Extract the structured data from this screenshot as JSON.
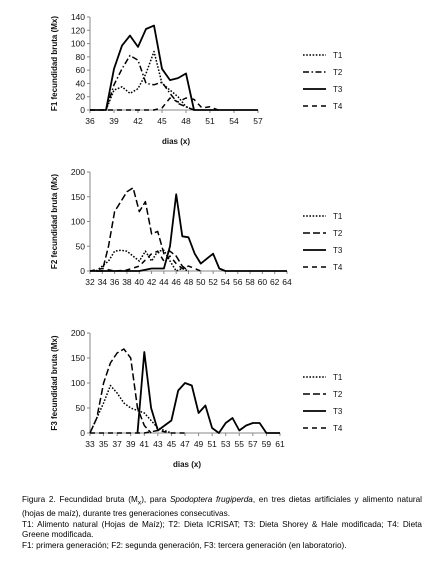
{
  "chart_data": [
    {
      "type": "line",
      "panel": "F1",
      "ylabel": "F1 fecundidad bruta (Mx)",
      "xlabel": "dias (x)",
      "ylim": [
        0,
        140
      ],
      "yticks": [
        0,
        20,
        40,
        60,
        80,
        100,
        120,
        140
      ],
      "xlim": [
        36,
        57
      ],
      "xticks": [
        36,
        39,
        42,
        45,
        48,
        51,
        54,
        57
      ],
      "grid": false,
      "legend_position": "right",
      "series": [
        {
          "name": "T1",
          "style": "dotted",
          "x": [
            38,
            39,
            40,
            41,
            42,
            43,
            44,
            45,
            46,
            47,
            48,
            49
          ],
          "y": [
            0,
            30,
            35,
            25,
            32,
            55,
            88,
            40,
            30,
            20,
            5,
            0
          ]
        },
        {
          "name": "T2",
          "style": "dashdot",
          "x": [
            38,
            39,
            40,
            41,
            42,
            43,
            44,
            45,
            46,
            47,
            48,
            49
          ],
          "y": [
            0,
            38,
            62,
            82,
            75,
            40,
            38,
            42,
            25,
            10,
            5,
            0
          ]
        },
        {
          "name": "T3",
          "style": "solid",
          "x": [
            36,
            37,
            38,
            39,
            40,
            41,
            42,
            43,
            44,
            45,
            46,
            47,
            48,
            49,
            50,
            51,
            52,
            53,
            54,
            55,
            56,
            57
          ],
          "y": [
            0,
            0,
            0,
            62,
            97,
            112,
            95,
            122,
            127,
            62,
            45,
            48,
            55,
            0,
            0,
            0,
            0,
            0,
            0,
            0,
            0,
            0
          ]
        },
        {
          "name": "T4",
          "style": "dashed",
          "x": [
            36,
            38,
            40,
            42,
            44,
            45,
            46,
            47,
            48,
            49,
            50,
            51,
            52
          ],
          "y": [
            0,
            0,
            0,
            0,
            0,
            3,
            18,
            12,
            18,
            16,
            3,
            5,
            0
          ]
        }
      ]
    },
    {
      "type": "line",
      "panel": "F2",
      "ylabel": "F2 fecundidad bruta (Mx)",
      "xlabel": "",
      "ylim": [
        0,
        200
      ],
      "yticks": [
        0,
        50,
        100,
        150,
        200
      ],
      "xlim": [
        32,
        64
      ],
      "xticks": [
        32,
        34,
        36,
        38,
        40,
        42,
        44,
        46,
        48,
        50,
        52,
        54,
        56,
        58,
        60,
        62,
        64
      ],
      "grid": false,
      "legend_position": "right",
      "series": [
        {
          "name": "T1",
          "style": "dotted",
          "x": [
            33,
            34,
            35,
            36,
            37,
            38,
            39,
            40,
            41,
            42,
            43,
            44,
            45,
            46,
            47,
            48
          ],
          "y": [
            0,
            10,
            20,
            40,
            42,
            40,
            30,
            20,
            40,
            20,
            40,
            42,
            20,
            0,
            5,
            0
          ]
        },
        {
          "name": "T2",
          "style": "dash",
          "x": [
            33,
            34,
            35,
            36,
            37,
            38,
            39,
            40,
            41,
            42,
            43,
            44,
            45,
            46,
            47,
            48
          ],
          "y": [
            0,
            0,
            50,
            120,
            140,
            160,
            168,
            120,
            140,
            75,
            80,
            35,
            40,
            30,
            10,
            0
          ]
        },
        {
          "name": "T3",
          "style": "solid",
          "x": [
            32,
            34,
            36,
            38,
            40,
            42,
            44,
            45,
            46,
            47,
            48,
            49,
            50,
            51,
            52,
            53,
            54,
            56,
            58,
            60,
            62,
            64
          ],
          "y": [
            0,
            0,
            0,
            0,
            0,
            5,
            5,
            50,
            155,
            70,
            68,
            35,
            15,
            25,
            35,
            5,
            0,
            0,
            0,
            0,
            0,
            0
          ]
        },
        {
          "name": "T4",
          "style": "dashed",
          "x": [
            32,
            34,
            36,
            38,
            40,
            42,
            43,
            44,
            45,
            46,
            47,
            48,
            49,
            50
          ],
          "y": [
            0,
            5,
            0,
            2,
            10,
            35,
            40,
            20,
            30,
            15,
            5,
            10,
            5,
            0
          ]
        }
      ]
    },
    {
      "type": "line",
      "panel": "F3",
      "ylabel": "F3 fecundidad bruta (Mx)",
      "xlabel": "dias (x)",
      "ylim": [
        0,
        200
      ],
      "yticks": [
        0,
        50,
        100,
        150,
        200
      ],
      "xlim": [
        33,
        61
      ],
      "xticks": [
        33,
        35,
        37,
        39,
        41,
        43,
        45,
        47,
        49,
        51,
        53,
        55,
        57,
        59,
        61
      ],
      "grid": false,
      "legend_position": "right",
      "series": [
        {
          "name": "T1",
          "style": "dotted",
          "x": [
            33,
            34,
            35,
            36,
            37,
            38,
            39,
            40,
            41,
            42,
            43,
            44,
            45
          ],
          "y": [
            0,
            30,
            60,
            95,
            80,
            60,
            50,
            45,
            40,
            25,
            10,
            5,
            0
          ]
        },
        {
          "name": "T2",
          "style": "dash",
          "x": [
            33,
            34,
            35,
            36,
            37,
            38,
            39,
            40,
            41,
            42
          ],
          "y": [
            0,
            30,
            100,
            140,
            160,
            168,
            150,
            50,
            15,
            0
          ]
        },
        {
          "name": "T3",
          "style": "solid",
          "x": [
            40,
            41,
            42,
            43,
            44,
            45,
            46,
            47,
            48,
            49,
            50,
            51,
            52,
            53,
            54,
            55,
            56,
            57,
            58,
            59,
            60,
            61
          ],
          "y": [
            0,
            162,
            50,
            5,
            15,
            25,
            85,
            100,
            95,
            40,
            55,
            10,
            0,
            20,
            30,
            5,
            15,
            20,
            20,
            0,
            0,
            0
          ]
        },
        {
          "name": "T4",
          "style": "dashed",
          "x": [
            33,
            35,
            37,
            39,
            41,
            43,
            45,
            46,
            47
          ],
          "y": [
            0,
            0,
            0,
            0,
            0,
            5,
            0,
            0,
            0
          ]
        }
      ]
    }
  ],
  "caption": {
    "line1_a": "Figura 2. Fecundidad bruta (M",
    "line1_sub": "x",
    "line1_b": "), para ",
    "line1_italic": "Spodoptera frugiperda",
    "line1_c": ", en tres dietas artificiales y alimento natural (hojas de maíz), durante tres generaciones consecutivas.",
    "line2": "T1: Alimento natural (Hojas de Maíz); T2: Dieta ICRISAT; T3: Dieta Shorey & Hale modificada; T4: Dieta Greene modificada.",
    "line3": "F1: primera generación; F2: segunda generación, F3: tercera generación (en laboratorio)."
  }
}
